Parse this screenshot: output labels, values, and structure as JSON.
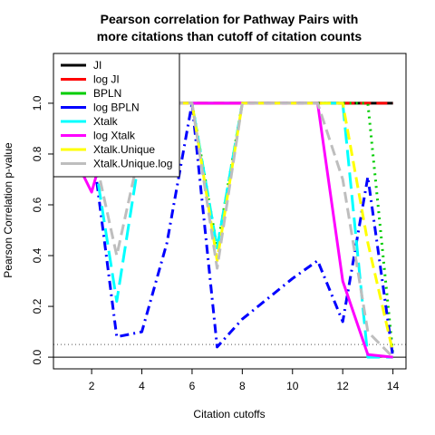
{
  "chart_data": {
    "type": "line",
    "title_lines": [
      "Pearson correlation for Pathway Pairs with",
      "more citations than cutoff of citation counts"
    ],
    "xlabel": "Citation cutoffs",
    "ylabel": "Pearson Correlation p-value",
    "xlim": [
      0.48,
      14.52
    ],
    "ylim": [
      -0.046,
      1.196
    ],
    "x_ticks": [
      2,
      4,
      6,
      8,
      10,
      12,
      14
    ],
    "x_tick_labels": [
      "2",
      "4",
      "6",
      "8",
      "10",
      "12",
      "14"
    ],
    "y_ticks": [
      0.0,
      0.2,
      0.4,
      0.6,
      0.8,
      1.0
    ],
    "y_tick_labels": [
      "0.0",
      "0.2",
      "0.4",
      "0.6",
      "0.8",
      "1.0"
    ],
    "reference_lines": [
      {
        "y": 0.05,
        "style": "dotted",
        "color": "#555555"
      },
      {
        "y": 0.0,
        "style": "solid",
        "color": "#000000"
      }
    ],
    "legend_position": "top-left",
    "x": [
      1,
      2,
      3,
      4,
      5,
      6,
      7,
      8,
      9,
      10,
      11,
      12,
      13,
      14
    ],
    "series": [
      {
        "name": "JI",
        "color": "#000000",
        "dash": "solid",
        "values": [
          1.0,
          1.0,
          1.0,
          1.0,
          1.0,
          1.0,
          1.0,
          1.0,
          1.0,
          1.0,
          1.0,
          1.0,
          1.0,
          1.0
        ]
      },
      {
        "name": "log JI",
        "color": "#ff0000",
        "dash": "dashed",
        "values": [
          1.0,
          1.0,
          1.0,
          1.0,
          1.0,
          1.0,
          1.0,
          1.0,
          1.0,
          1.0,
          1.0,
          1.0,
          1.0,
          1.0
        ]
      },
      {
        "name": "BPLN",
        "color": "#00cd00",
        "dash": "dotted",
        "values": [
          1.0,
          1.0,
          1.0,
          1.0,
          1.0,
          1.0,
          0.43,
          1.0,
          1.0,
          1.0,
          1.0,
          1.0,
          1.0,
          0.01
        ]
      },
      {
        "name": "log BPLN",
        "color": "#0000ff",
        "dash": "dotdash",
        "values": [
          0.85,
          0.85,
          0.08,
          0.1,
          0.45,
          1.0,
          0.04,
          0.15,
          0.23,
          0.31,
          0.38,
          0.14,
          0.71,
          0.0
        ]
      },
      {
        "name": "Xtalk",
        "color": "#00ffff",
        "dash": "longdash",
        "values": [
          0.85,
          0.85,
          0.22,
          0.85,
          1.0,
          1.0,
          0.43,
          1.0,
          1.0,
          1.0,
          1.0,
          1.0,
          0.0,
          0.0
        ]
      },
      {
        "name": "log Xtalk",
        "color": "#ff00ff",
        "dash": "solid",
        "values": [
          0.85,
          0.65,
          1.0,
          1.0,
          1.0,
          1.0,
          1.0,
          1.0,
          1.0,
          1.0,
          1.0,
          0.3,
          0.01,
          0.0
        ]
      },
      {
        "name": "Xtalk.Unique",
        "color": "#ffff00",
        "dash": "dashed",
        "values": [
          1.0,
          1.0,
          1.0,
          1.0,
          1.0,
          1.0,
          0.38,
          1.0,
          1.0,
          1.0,
          1.0,
          1.0,
          0.45,
          0.02
        ]
      },
      {
        "name": "Xtalk.Unique.log",
        "color": "#bebebe",
        "dash": "dashed",
        "values": [
          0.85,
          0.85,
          0.4,
          0.85,
          1.0,
          1.0,
          0.35,
          1.0,
          1.0,
          1.0,
          1.0,
          0.7,
          0.1,
          0.0
        ]
      }
    ]
  }
}
